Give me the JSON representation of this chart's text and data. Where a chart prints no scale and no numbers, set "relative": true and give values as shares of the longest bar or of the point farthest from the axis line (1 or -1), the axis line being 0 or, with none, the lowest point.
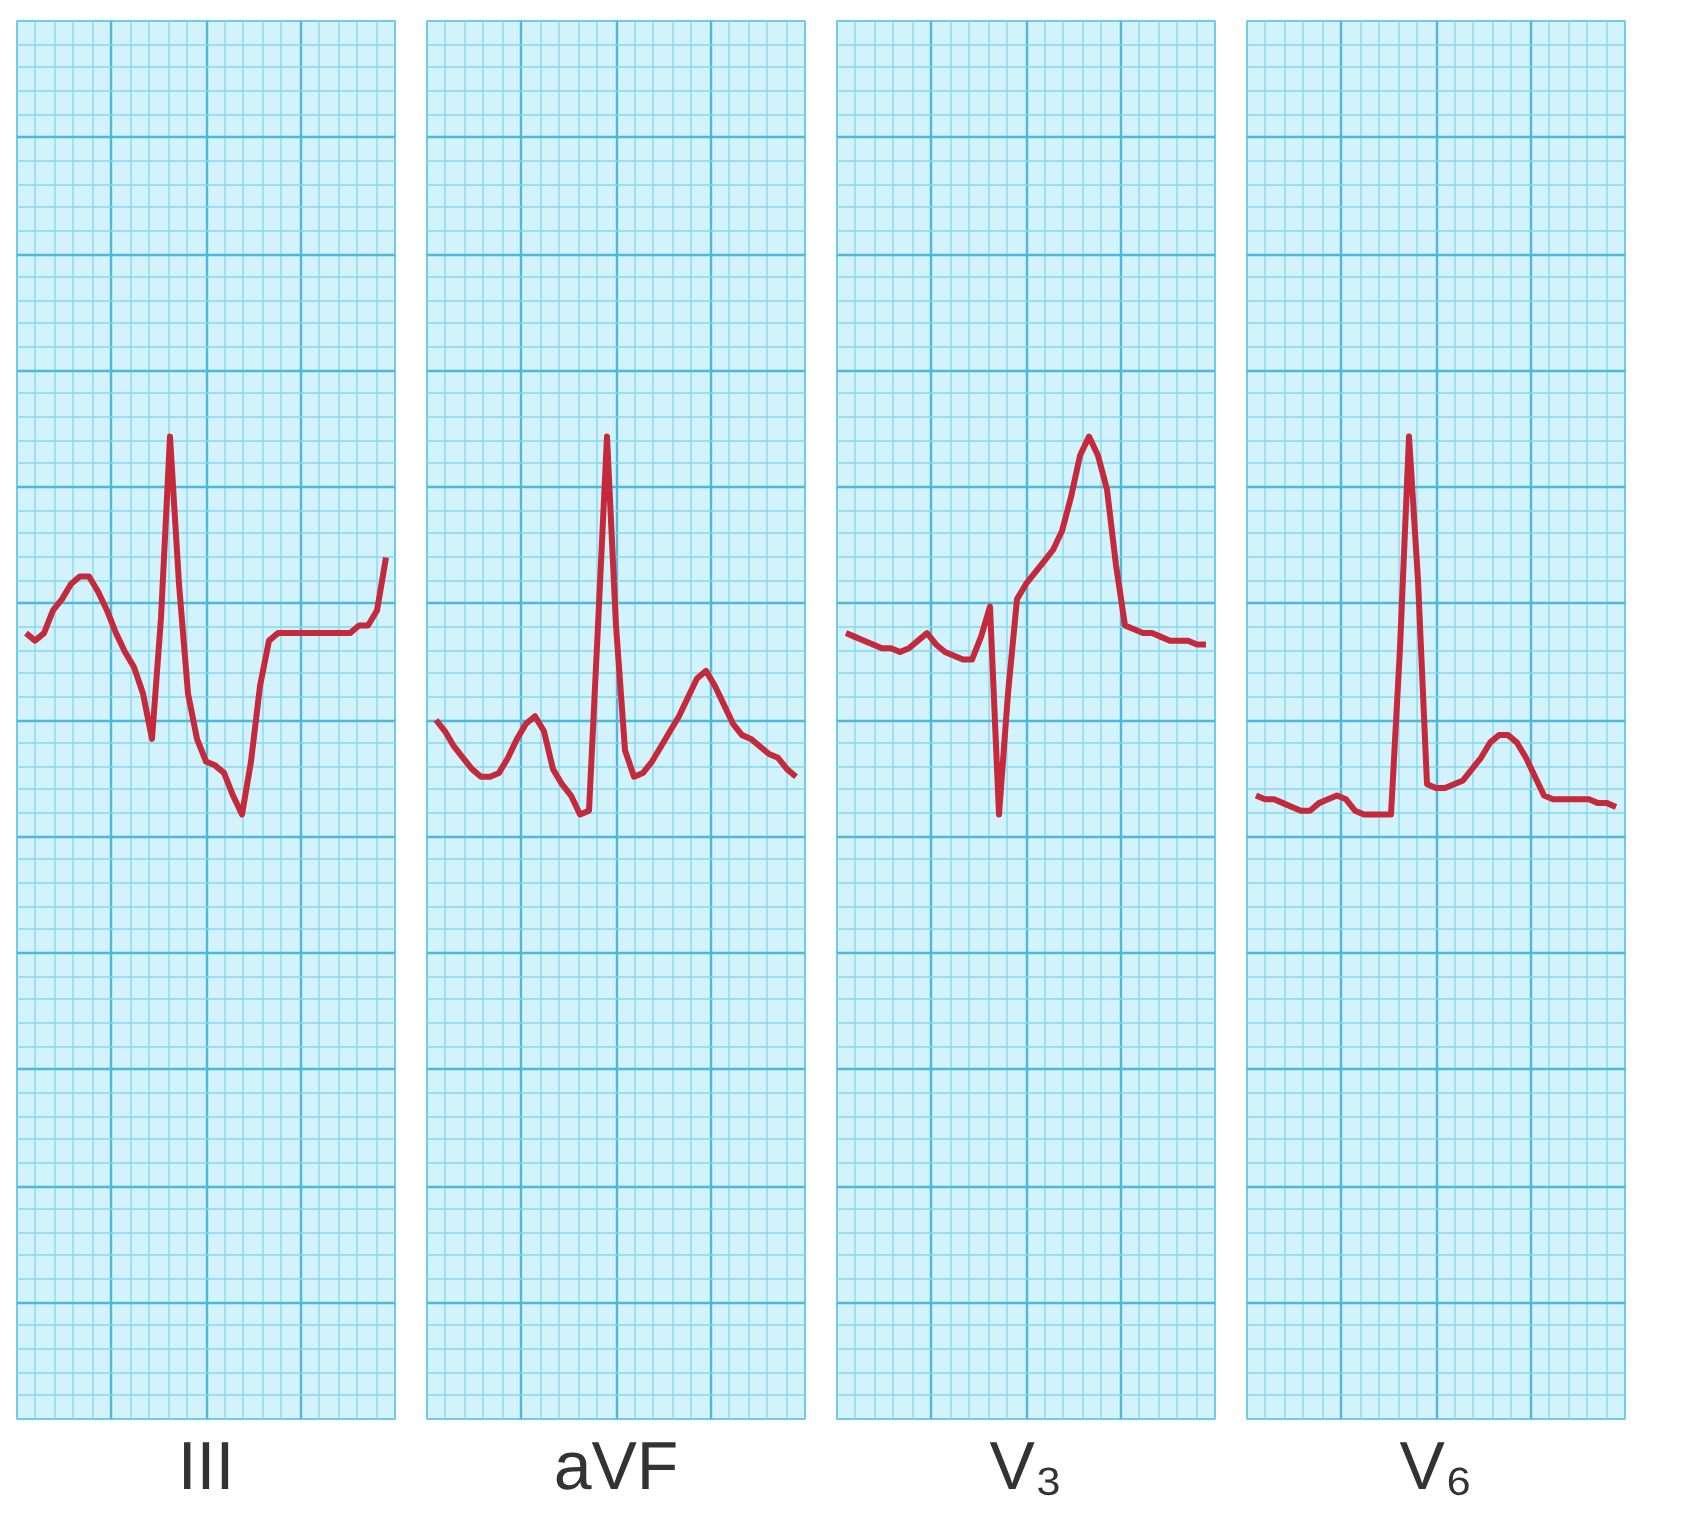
{
  "chart_data": [
    {
      "type": "line",
      "relative": true,
      "grid": true,
      "tick_labels": false,
      "line_style": "solid",
      "xlabel": "III",
      "categories": [
        null,
        null,
        null,
        null,
        null,
        null,
        null,
        null,
        null,
        null,
        null,
        null,
        null,
        null,
        null,
        null,
        null,
        null,
        null,
        null,
        null,
        null,
        null,
        null,
        null,
        null,
        null,
        null,
        null,
        null,
        null,
        null,
        null,
        null,
        null,
        null,
        null,
        null,
        null,
        null,
        null
      ],
      "series": [
        {
          "color": "#c42a3c",
          "values": [
            0.48,
            0.46,
            0.48,
            0.54,
            0.57,
            0.61,
            0.63,
            0.63,
            0.59,
            0.54,
            0.48,
            0.43,
            0.39,
            0.32,
            0.2,
            0.52,
            1,
            0.61,
            0.32,
            0.2,
            0.14,
            0.13,
            0.11,
            0.05,
            0,
            0.14,
            0.34,
            0.46,
            0.48,
            0.48,
            0.48,
            0.48,
            0.48,
            0.48,
            0.48,
            0.48,
            0.48,
            0.5,
            0.5,
            0.54,
            0.68
          ]
        }
      ]
    },
    {
      "type": "line",
      "relative": true,
      "grid": true,
      "tick_labels": false,
      "line_style": "solid",
      "xlabel": "aVF",
      "categories": [
        null,
        null,
        null,
        null,
        null,
        null,
        null,
        null,
        null,
        null,
        null,
        null,
        null,
        null,
        null,
        null,
        null,
        null,
        null,
        null,
        null,
        null,
        null,
        null,
        null,
        null,
        null,
        null,
        null,
        null,
        null,
        null,
        null,
        null,
        null,
        null,
        null,
        null,
        null,
        null,
        null
      ],
      "series": [
        {
          "color": "#c42a3c",
          "values": [
            0.25,
            0.22,
            0.18,
            0.15,
            0.12,
            0.1,
            0.1,
            0.11,
            0.15,
            0.2,
            0.24,
            0.26,
            0.22,
            0.12,
            0.08,
            0.05,
            0,
            0.01,
            0.5,
            1,
            0.5,
            0.17,
            0.1,
            0.11,
            0.14,
            0.18,
            0.22,
            0.26,
            0.31,
            0.36,
            0.38,
            0.34,
            0.29,
            0.24,
            0.21,
            0.2,
            0.18,
            0.16,
            0.15,
            0.12,
            0.1
          ]
        }
      ]
    },
    {
      "type": "line",
      "relative": true,
      "grid": true,
      "tick_labels": false,
      "line_style": "solid",
      "xlabel": "V₃",
      "categories": [
        null,
        null,
        null,
        null,
        null,
        null,
        null,
        null,
        null,
        null,
        null,
        null,
        null,
        null,
        null,
        null,
        null,
        null,
        null,
        null,
        null,
        null,
        null,
        null,
        null,
        null,
        null,
        null,
        null,
        null,
        null,
        null,
        null,
        null,
        null,
        null,
        null,
        null,
        null,
        null,
        null
      ],
      "series": [
        {
          "color": "#c42a3c",
          "values": [
            0.48,
            0.47,
            0.46,
            0.45,
            0.44,
            0.44,
            0.43,
            0.44,
            0.46,
            0.48,
            0.45,
            0.43,
            0.42,
            0.41,
            0.41,
            0.47,
            0.55,
            0,
            0.32,
            0.57,
            0.61,
            0.64,
            0.67,
            0.7,
            0.75,
            0.84,
            0.95,
            1,
            0.95,
            0.86,
            0.66,
            0.5,
            0.49,
            0.48,
            0.48,
            0.47,
            0.46,
            0.46,
            0.46,
            0.45,
            0.45
          ]
        }
      ]
    },
    {
      "type": "line",
      "relative": true,
      "grid": true,
      "tick_labels": false,
      "line_style": "solid",
      "xlabel": "V₆",
      "categories": [
        null,
        null,
        null,
        null,
        null,
        null,
        null,
        null,
        null,
        null,
        null,
        null,
        null,
        null,
        null,
        null,
        null,
        null,
        null,
        null,
        null,
        null,
        null,
        null,
        null,
        null,
        null,
        null,
        null,
        null,
        null,
        null,
        null,
        null,
        null,
        null,
        null,
        null,
        null,
        null,
        null
      ],
      "series": [
        {
          "color": "#c42a3c",
          "values": [
            0.05,
            0.04,
            0.04,
            0.03,
            0.02,
            0.01,
            0.01,
            0.03,
            0.04,
            0.05,
            0.04,
            0.01,
            0,
            0,
            0,
            0,
            0.44,
            1,
            0.62,
            0.08,
            0.07,
            0.07,
            0.08,
            0.09,
            0.12,
            0.15,
            0.19,
            0.21,
            0.21,
            0.19,
            0.15,
            0.1,
            0.05,
            0.04,
            0.04,
            0.04,
            0.04,
            0.04,
            0.03,
            0.03,
            0.02
          ]
        }
      ]
    }
  ]
}
